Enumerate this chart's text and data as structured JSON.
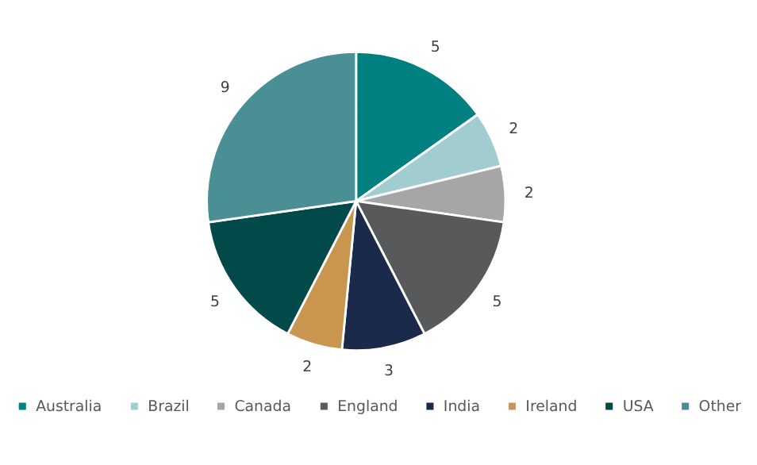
{
  "chart_data": {
    "type": "pie",
    "categories": [
      "Australia",
      "Brazil",
      "Canada",
      "England",
      "India",
      "Ireland",
      "USA",
      "Other"
    ],
    "values": [
      5,
      2,
      2,
      5,
      3,
      2,
      5,
      9
    ],
    "colors": [
      "#008080",
      "#a2cdd0",
      "#a6a6a8",
      "#58595b",
      "#1b2a4a",
      "#c9964f",
      "#024a4a",
      "#4a8f94"
    ],
    "data_labels": true,
    "legend": "bottom"
  }
}
